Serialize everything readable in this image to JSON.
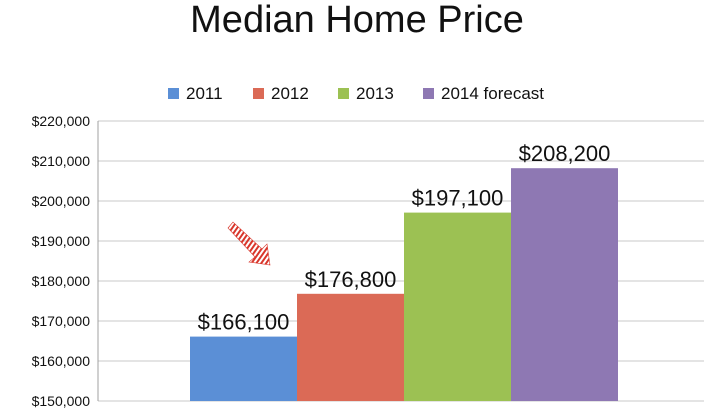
{
  "chart_data": {
    "type": "bar",
    "title": "Median Home Price",
    "xlabel": "",
    "ylabel": "",
    "ylim": [
      150000,
      220000
    ],
    "y_ticks": [
      150000,
      160000,
      170000,
      180000,
      190000,
      200000,
      210000,
      220000
    ],
    "y_tick_labels": [
      "$150,000",
      "$160,000",
      "$170,000",
      "$180,000",
      "$190,000",
      "$200,000",
      "$210,000",
      "$220,000"
    ],
    "grid": true,
    "legend_position": "top",
    "series": [
      {
        "name": "2011",
        "value": 166100,
        "label": "$166,100",
        "color": "#5b8fd6"
      },
      {
        "name": "2012",
        "value": 176800,
        "label": "$176,800",
        "color": "#db6a56"
      },
      {
        "name": "2013",
        "value": 197100,
        "label": "$197,100",
        "color": "#9cc153"
      },
      {
        "name": "2014 forecast",
        "value": 208200,
        "label": "$208,200",
        "color": "#8e78b3"
      }
    ]
  },
  "annotation": {
    "icon": "arrow-icon",
    "color": "#d9362b"
  }
}
